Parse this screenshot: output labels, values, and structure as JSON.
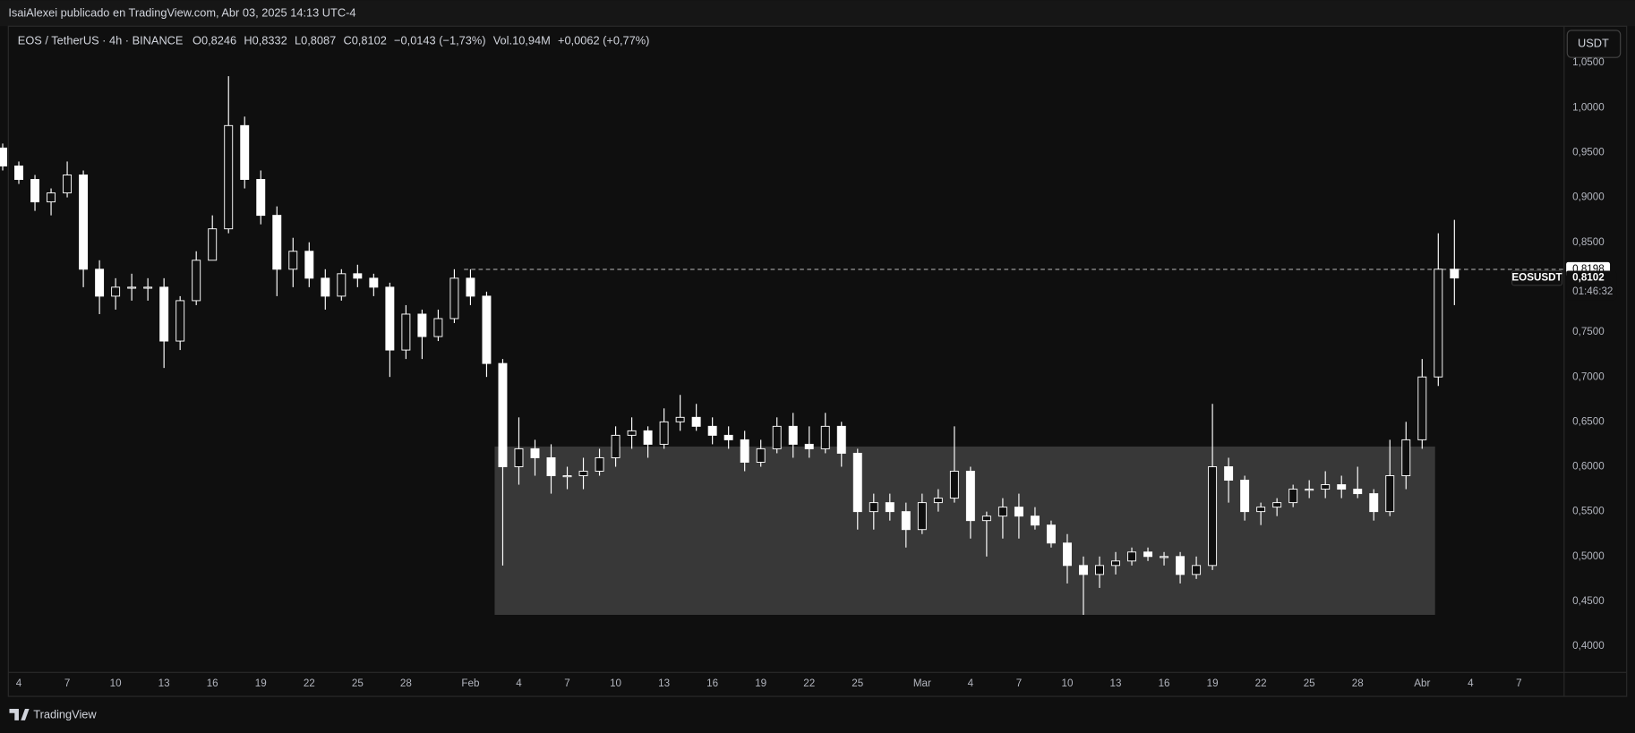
{
  "header": {
    "publisher": "IsaiAlexei publicado en TradingView.com, Abr 03, 2025 14:13 UTC-4"
  },
  "chart_data": {
    "type": "candlestick",
    "title": "EOS / TetherUS · 4h · BINANCE",
    "legend_values": [
      {
        "key": "O",
        "value": "0,8246"
      },
      {
        "key": "H",
        "value": "0,8332"
      },
      {
        "key": "L",
        "value": "0,8087"
      },
      {
        "key": "C",
        "value": "0,8102"
      }
    ],
    "change": "−0,0143 (−1,73%)",
    "volume": {
      "key": "Vol.",
      "value": "10,94M",
      "change": "+0,0062 (+0,77%)"
    },
    "currency_button": "USDT",
    "series": [
      {
        "name": "EOSUSDT",
        "color": "#ffffff",
        "x": [
          3,
          4,
          5,
          6,
          7,
          8,
          9,
          10,
          11,
          12,
          13,
          14,
          15,
          16,
          17,
          18,
          19,
          20,
          21,
          22,
          23,
          24,
          25,
          26,
          27,
          28,
          29,
          30,
          31,
          32,
          33,
          34,
          35,
          36,
          37,
          38,
          39,
          40,
          41,
          42,
          43,
          44,
          45,
          46,
          47,
          48,
          49,
          50,
          51,
          52,
          53,
          54,
          55,
          56,
          57,
          58,
          59,
          60,
          61,
          62,
          63,
          64,
          65,
          66,
          67,
          68,
          69,
          70,
          71,
          72,
          73,
          74,
          75,
          76,
          77,
          78,
          79,
          80,
          81,
          82,
          83,
          84,
          85,
          86,
          87,
          88,
          89,
          90,
          91,
          92,
          93
        ],
        "open": [
          0.955,
          0.935,
          0.92,
          0.895,
          0.905,
          0.925,
          0.82,
          0.79,
          0.8,
          0.8,
          0.8,
          0.74,
          0.785,
          0.83,
          0.865,
          0.98,
          0.92,
          0.88,
          0.82,
          0.84,
          0.81,
          0.79,
          0.815,
          0.81,
          0.8,
          0.73,
          0.77,
          0.745,
          0.765,
          0.81,
          0.79,
          0.715,
          0.6,
          0.62,
          0.61,
          0.59,
          0.59,
          0.595,
          0.61,
          0.635,
          0.64,
          0.625,
          0.65,
          0.655,
          0.645,
          0.635,
          0.63,
          0.605,
          0.62,
          0.645,
          0.625,
          0.62,
          0.645,
          0.615,
          0.55,
          0.56,
          0.55,
          0.53,
          0.56,
          0.565,
          0.595,
          0.54,
          0.545,
          0.555,
          0.545,
          0.535,
          0.515,
          0.49,
          0.48,
          0.49,
          0.495,
          0.505,
          0.5,
          0.5,
          0.48,
          0.49,
          0.6,
          0.585,
          0.55,
          0.555,
          0.56,
          0.575,
          0.575,
          0.58,
          0.575,
          0.57,
          0.55,
          0.59,
          0.63,
          0.7,
          0.82
        ],
        "high": [
          0.96,
          0.94,
          0.925,
          0.91,
          0.94,
          0.93,
          0.83,
          0.81,
          0.815,
          0.81,
          0.81,
          0.79,
          0.84,
          0.88,
          1.035,
          0.99,
          0.93,
          0.89,
          0.855,
          0.85,
          0.82,
          0.82,
          0.825,
          0.815,
          0.805,
          0.78,
          0.775,
          0.775,
          0.82,
          0.82,
          0.795,
          0.72,
          0.655,
          0.63,
          0.625,
          0.6,
          0.61,
          0.62,
          0.645,
          0.655,
          0.645,
          0.665,
          0.68,
          0.67,
          0.655,
          0.645,
          0.64,
          0.63,
          0.655,
          0.66,
          0.645,
          0.66,
          0.65,
          0.62,
          0.57,
          0.57,
          0.56,
          0.57,
          0.575,
          0.645,
          0.6,
          0.55,
          0.565,
          0.57,
          0.555,
          0.54,
          0.525,
          0.5,
          0.5,
          0.505,
          0.51,
          0.51,
          0.505,
          0.505,
          0.5,
          0.67,
          0.61,
          0.59,
          0.56,
          0.565,
          0.58,
          0.585,
          0.595,
          0.59,
          0.6,
          0.575,
          0.63,
          0.65,
          0.72,
          0.86,
          0.875
        ],
        "low": [
          0.93,
          0.915,
          0.885,
          0.88,
          0.9,
          0.8,
          0.77,
          0.775,
          0.785,
          0.785,
          0.71,
          0.73,
          0.78,
          0.83,
          0.86,
          0.91,
          0.87,
          0.79,
          0.8,
          0.8,
          0.775,
          0.785,
          0.8,
          0.79,
          0.7,
          0.72,
          0.72,
          0.74,
          0.76,
          0.78,
          0.7,
          0.49,
          0.58,
          0.59,
          0.57,
          0.575,
          0.575,
          0.59,
          0.6,
          0.62,
          0.61,
          0.62,
          0.64,
          0.64,
          0.625,
          0.62,
          0.595,
          0.6,
          0.615,
          0.61,
          0.61,
          0.615,
          0.6,
          0.53,
          0.53,
          0.54,
          0.51,
          0.525,
          0.55,
          0.56,
          0.52,
          0.5,
          0.52,
          0.52,
          0.53,
          0.51,
          0.47,
          0.435,
          0.465,
          0.48,
          0.49,
          0.495,
          0.49,
          0.47,
          0.475,
          0.485,
          0.56,
          0.54,
          0.535,
          0.545,
          0.555,
          0.565,
          0.565,
          0.565,
          0.565,
          0.54,
          0.545,
          0.575,
          0.62,
          0.69,
          0.78
        ],
        "close": [
          0.935,
          0.92,
          0.895,
          0.905,
          0.925,
          0.82,
          0.79,
          0.8,
          0.8,
          0.8,
          0.74,
          0.785,
          0.83,
          0.865,
          0.98,
          0.92,
          0.88,
          0.82,
          0.84,
          0.81,
          0.79,
          0.815,
          0.81,
          0.8,
          0.73,
          0.77,
          0.745,
          0.765,
          0.81,
          0.79,
          0.715,
          0.6,
          0.62,
          0.61,
          0.59,
          0.59,
          0.595,
          0.61,
          0.635,
          0.64,
          0.625,
          0.65,
          0.655,
          0.645,
          0.635,
          0.63,
          0.605,
          0.62,
          0.645,
          0.625,
          0.62,
          0.645,
          0.615,
          0.55,
          0.56,
          0.55,
          0.53,
          0.56,
          0.565,
          0.595,
          0.54,
          0.545,
          0.555,
          0.545,
          0.535,
          0.515,
          0.49,
          0.48,
          0.49,
          0.495,
          0.505,
          0.5,
          0.5,
          0.48,
          0.49,
          0.6,
          0.585,
          0.55,
          0.555,
          0.56,
          0.575,
          0.575,
          0.58,
          0.575,
          0.57,
          0.55,
          0.59,
          0.63,
          0.7,
          0.82,
          0.8102
        ]
      }
    ],
    "last_price": {
      "value": 0.8102,
      "label": "0,8102",
      "countdown": "01:46:32"
    },
    "level": {
      "value": 0.8198,
      "label": "0,8198",
      "x": 31.6
    },
    "zone": {
      "x": [
        33.5,
        91.8
      ],
      "y": [
        0.435,
        0.6225
      ],
      "color": "#404040"
    },
    "xlim": [
      3.35,
      99.8
    ],
    "ylim": [
      0.3709,
      1.0907
    ],
    "xticks": [
      4,
      7,
      10,
      13,
      16,
      19,
      22,
      25,
      28,
      {
        "value": 32,
        "label": "Feb"
      },
      {
        "value": 35,
        "label": "4"
      },
      {
        "value": 38,
        "label": "7"
      },
      {
        "value": 41,
        "label": "10"
      },
      {
        "value": 44,
        "label": "13"
      },
      {
        "value": 47,
        "label": "16"
      },
      {
        "value": 50,
        "label": "19"
      },
      {
        "value": 53,
        "label": "22"
      },
      {
        "value": 56,
        "label": "25"
      },
      {
        "value": 60,
        "label": "Mar"
      },
      {
        "value": 63,
        "label": "4"
      },
      {
        "value": 66,
        "label": "7"
      },
      {
        "value": 69,
        "label": "10"
      },
      {
        "value": 72,
        "label": "13"
      },
      {
        "value": 75,
        "label": "16"
      },
      {
        "value": 78,
        "label": "19"
      },
      {
        "value": 81,
        "label": "22"
      },
      {
        "value": 84,
        "label": "25"
      },
      {
        "value": 87,
        "label": "28"
      },
      {
        "value": 91,
        "label": "Abr"
      },
      {
        "value": 94,
        "label": "4"
      },
      {
        "value": 97,
        "label": "7"
      }
    ],
    "yticks": [
      {
        "value": 0.4,
        "label": "0,4000"
      },
      {
        "value": 0.45,
        "label": "0,4500"
      },
      {
        "value": 0.5,
        "label": "0,5000"
      },
      {
        "value": 0.55,
        "label": "0,5500"
      },
      {
        "value": 0.6,
        "label": "0,6000"
      },
      {
        "value": 0.65,
        "label": "0,6500"
      },
      {
        "value": 0.7,
        "label": "0,7000"
      },
      {
        "value": 0.75,
        "label": "0,7500"
      },
      {
        "value": 0.8,
        "label": "0,8000"
      },
      {
        "value": 0.85,
        "label": "0,8500"
      },
      {
        "value": 0.9,
        "label": "0,9000"
      },
      {
        "value": 0.95,
        "label": "0,9500"
      },
      {
        "value": 1.0,
        "label": "1,0000"
      },
      {
        "value": 1.05,
        "label": "1,0500"
      }
    ],
    "grid": false
  },
  "footer": {
    "brand": "TradingView"
  }
}
